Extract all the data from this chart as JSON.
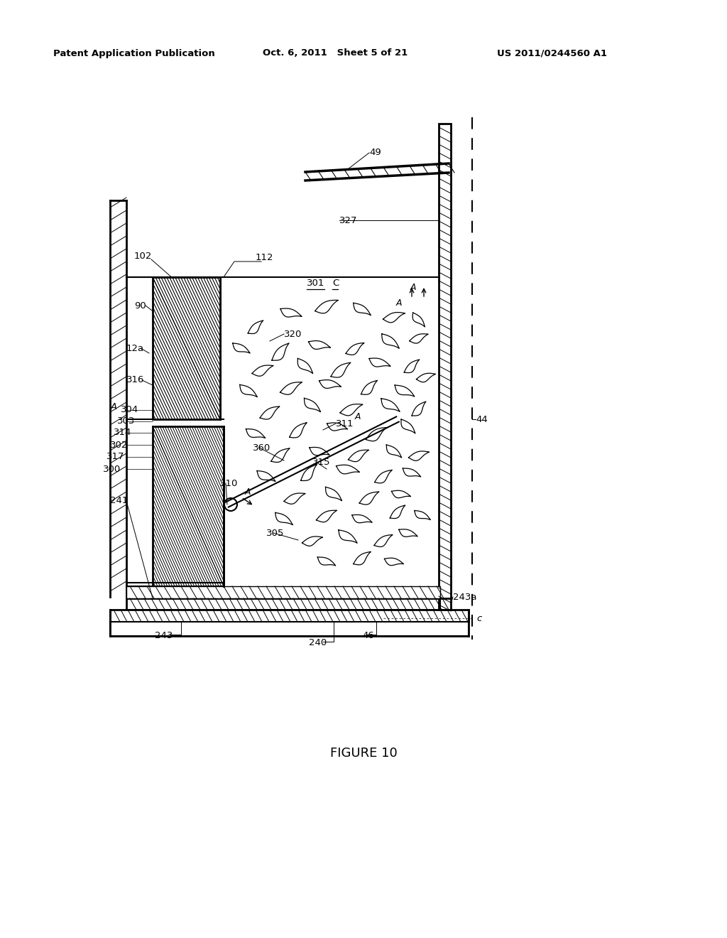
{
  "title_left": "Patent Application Publication",
  "title_center": "Oct. 6, 2011   Sheet 5 of 21",
  "title_right": "US 2011/0244560 A1",
  "figure_label": "FIGURE 10",
  "bg_color": "#ffffff",
  "line_color": "#000000"
}
